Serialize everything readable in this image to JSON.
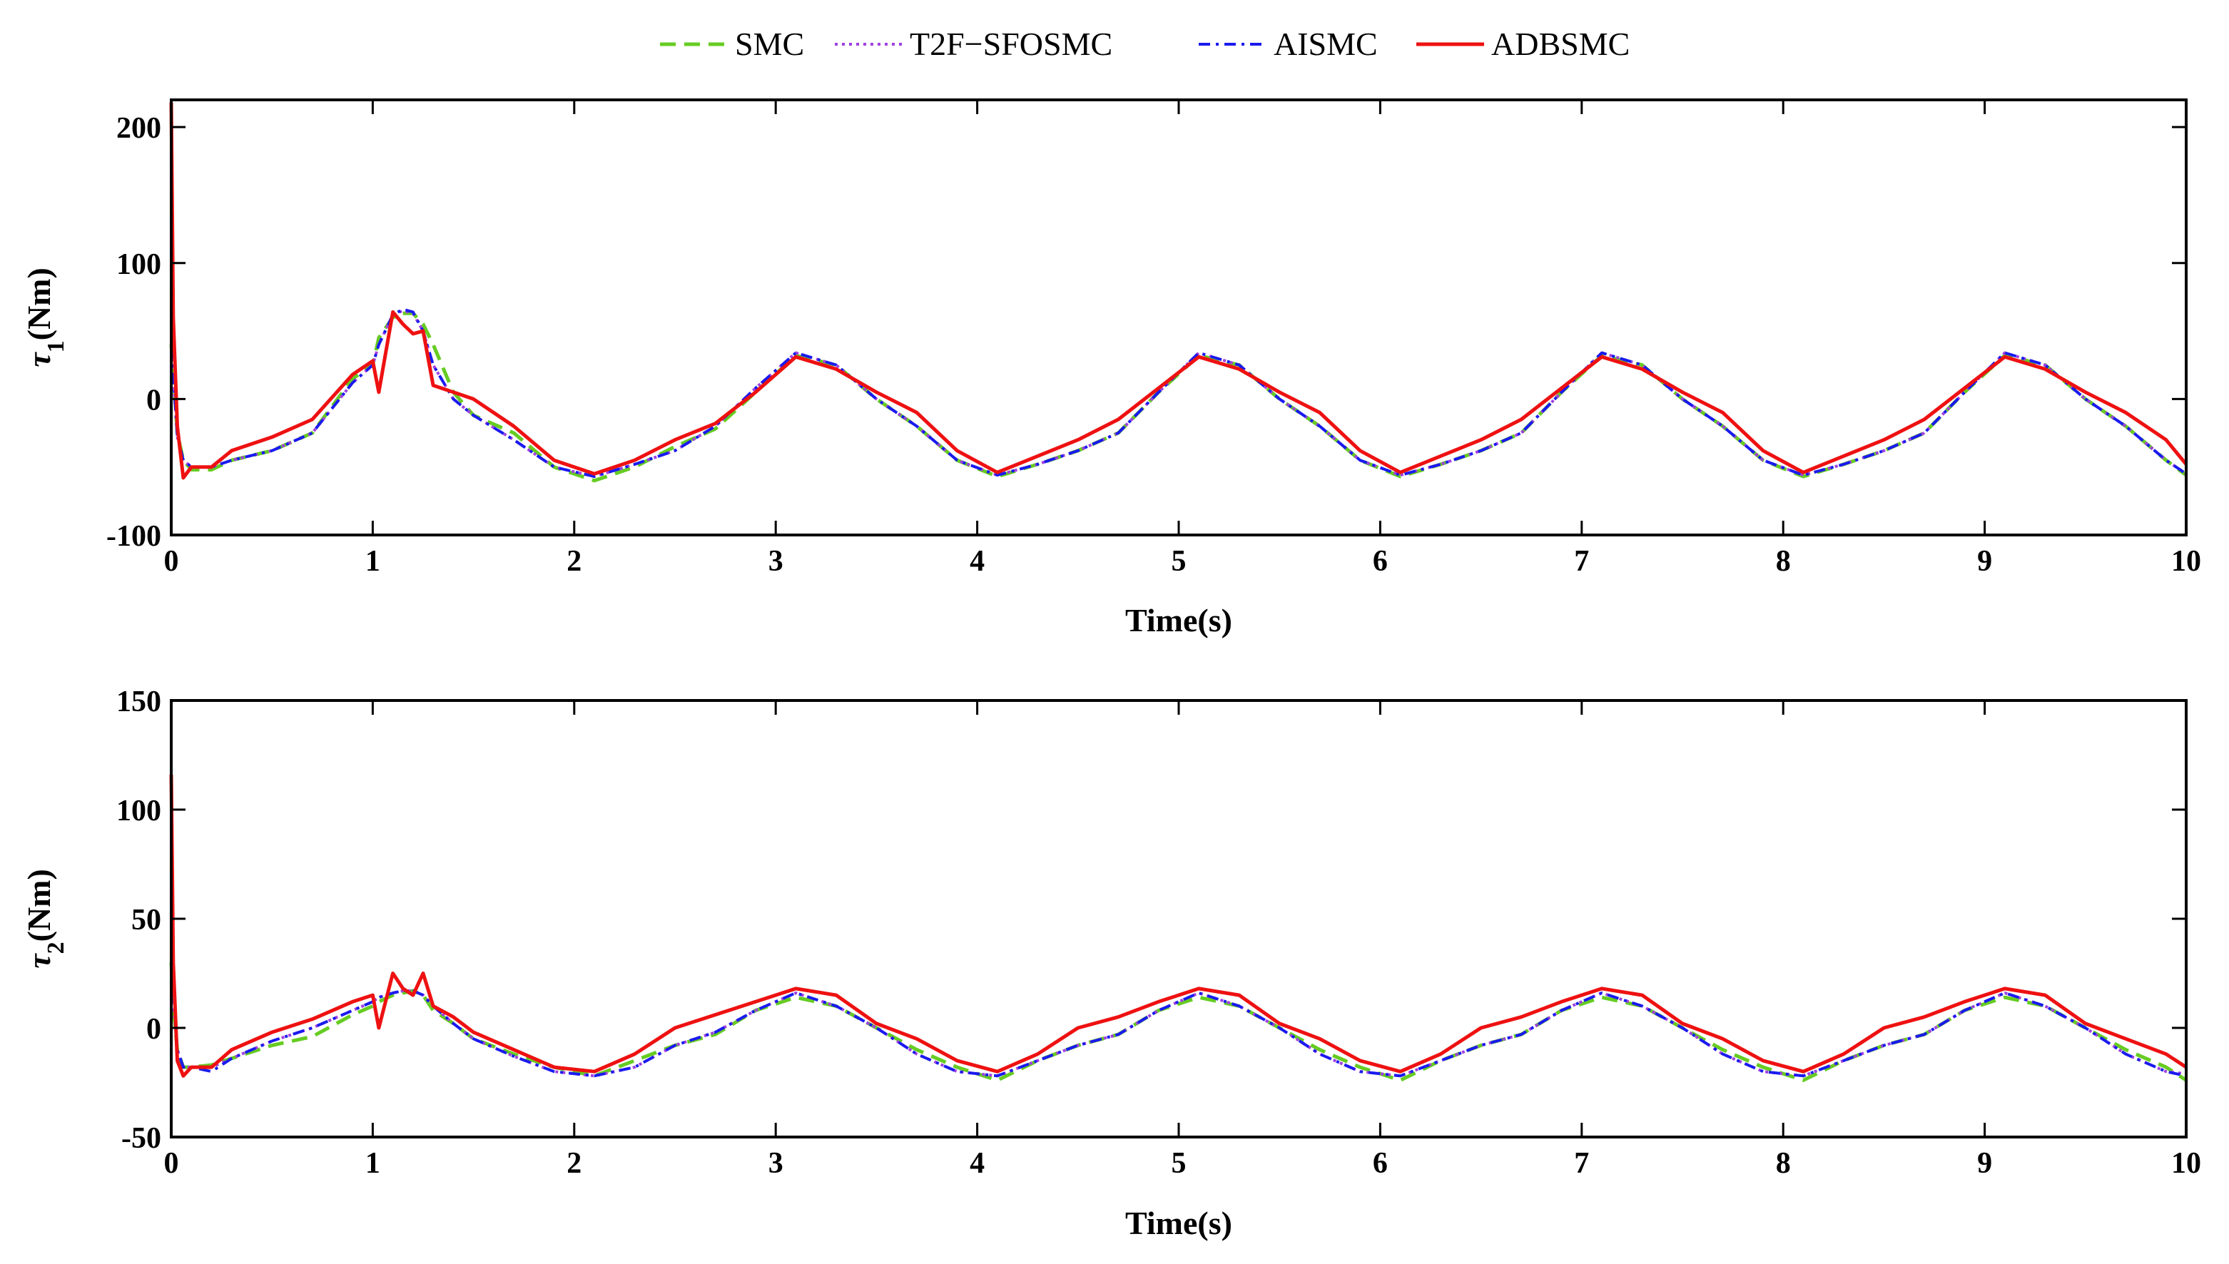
{
  "legend": {
    "placement": "top-center",
    "items": [
      {
        "label": "SMC",
        "color": "#66cc22",
        "dash": "dashed"
      },
      {
        "label": "T2F−SFOSMC",
        "color": "#a040e0",
        "dash": "dotted"
      },
      {
        "label": "AISMC",
        "color": "#1a1aee",
        "dash": "dashdot"
      },
      {
        "label": "ADBSMC",
        "color": "#ee1111",
        "dash": "solid"
      }
    ]
  },
  "chart_data": [
    {
      "type": "line",
      "xlabel": "Time(s)",
      "ylabel_symbol": "τ",
      "ylabel_subscript": "1",
      "ylabel_unit": "(Nm)",
      "xlim": [
        0,
        10
      ],
      "ylim": [
        -100,
        220
      ],
      "xticks": [
        "0",
        "1",
        "2",
        "3",
        "4",
        "5",
        "6",
        "7",
        "8",
        "9",
        "10"
      ],
      "yticks": [
        "-100",
        "0",
        "100",
        "200"
      ],
      "grid": false,
      "x": [
        0,
        0.01,
        0.03,
        0.06,
        0.1,
        0.2,
        0.3,
        0.5,
        0.7,
        0.9,
        1.0,
        1.03,
        1.1,
        1.15,
        1.2,
        1.25,
        1.3,
        1.4,
        1.5,
        1.7,
        1.9,
        2.1,
        2.3,
        2.5,
        2.7,
        2.9,
        3.1,
        3.3,
        3.5,
        3.7,
        3.9,
        4.1,
        4.3,
        4.5,
        4.7,
        4.9,
        5.1,
        5.3,
        5.5,
        5.7,
        5.9,
        6.1,
        6.3,
        6.5,
        6.7,
        6.9,
        7.1,
        7.3,
        7.5,
        7.7,
        7.9,
        8.1,
        8.3,
        8.5,
        8.7,
        8.9,
        9.1,
        9.3,
        9.5,
        9.7,
        9.9,
        10.0
      ],
      "series": [
        {
          "name": "SMC",
          "values": [
            40,
            20,
            -25,
            -45,
            -52,
            -52,
            -45,
            -38,
            -25,
            15,
            25,
            45,
            60,
            63,
            63,
            55,
            40,
            5,
            -12,
            -25,
            -50,
            -60,
            -50,
            -35,
            -22,
            5,
            32,
            25,
            0,
            -20,
            -45,
            -57,
            -48,
            -38,
            -25,
            5,
            32,
            25,
            0,
            -20,
            -45,
            -57,
            -48,
            -38,
            -25,
            5,
            32,
            25,
            0,
            -20,
            -45,
            -57,
            -48,
            -38,
            -25,
            5,
            32,
            25,
            0,
            -20,
            -45,
            -56
          ]
        },
        {
          "name": "T2F−SFOSMC",
          "values": [
            35,
            15,
            -28,
            -45,
            -50,
            -50,
            -45,
            -38,
            -25,
            12,
            25,
            40,
            62,
            65,
            63,
            50,
            25,
            0,
            -12,
            -30,
            -50,
            -57,
            -48,
            -38,
            -20,
            8,
            34,
            25,
            0,
            -20,
            -45,
            -56,
            -48,
            -38,
            -25,
            5,
            34,
            25,
            0,
            -20,
            -45,
            -56,
            -48,
            -38,
            -25,
            5,
            34,
            25,
            0,
            -20,
            -45,
            -56,
            -48,
            -38,
            -25,
            5,
            34,
            25,
            0,
            -20,
            -45,
            -55
          ]
        },
        {
          "name": "AISMC",
          "values": [
            38,
            18,
            -27,
            -45,
            -50,
            -50,
            -45,
            -38,
            -25,
            12,
            25,
            40,
            62,
            66,
            64,
            50,
            25,
            0,
            -12,
            -30,
            -50,
            -57,
            -48,
            -38,
            -20,
            8,
            34,
            25,
            0,
            -20,
            -45,
            -56,
            -48,
            -38,
            -25,
            5,
            34,
            25,
            0,
            -20,
            -45,
            -56,
            -48,
            -38,
            -25,
            5,
            34,
            25,
            0,
            -20,
            -45,
            -56,
            -48,
            -38,
            -25,
            5,
            34,
            25,
            0,
            -20,
            -45,
            -55
          ]
        },
        {
          "name": "ADBSMC",
          "values": [
            218,
            60,
            -20,
            -58,
            -50,
            -50,
            -38,
            -28,
            -15,
            18,
            28,
            5,
            64,
            55,
            48,
            50,
            10,
            5,
            0,
            -20,
            -45,
            -55,
            -45,
            -30,
            -18,
            5,
            31,
            22,
            5,
            -10,
            -38,
            -54,
            -42,
            -30,
            -15,
            8,
            31,
            22,
            5,
            -10,
            -38,
            -54,
            -42,
            -30,
            -15,
            8,
            31,
            22,
            5,
            -10,
            -38,
            -54,
            -42,
            -30,
            -15,
            8,
            31,
            22,
            5,
            -10,
            -30,
            -48
          ]
        }
      ]
    },
    {
      "type": "line",
      "xlabel": "Time(s)",
      "ylabel_symbol": "τ",
      "ylabel_subscript": "2",
      "ylabel_unit": "(Nm)",
      "xlim": [
        0,
        10
      ],
      "ylim": [
        -50,
        150
      ],
      "xticks": [
        "0",
        "1",
        "2",
        "3",
        "4",
        "5",
        "6",
        "7",
        "8",
        "9",
        "10"
      ],
      "yticks": [
        "-50",
        "0",
        "50",
        "100",
        "150"
      ],
      "grid": false,
      "x": [
        0,
        0.01,
        0.03,
        0.06,
        0.1,
        0.2,
        0.3,
        0.5,
        0.7,
        0.9,
        1.0,
        1.03,
        1.1,
        1.15,
        1.2,
        1.25,
        1.3,
        1.4,
        1.5,
        1.7,
        1.9,
        2.1,
        2.3,
        2.5,
        2.7,
        2.9,
        3.1,
        3.3,
        3.5,
        3.7,
        3.9,
        4.1,
        4.3,
        4.5,
        4.7,
        4.9,
        5.1,
        5.3,
        5.5,
        5.7,
        5.9,
        6.1,
        6.3,
        6.5,
        6.7,
        6.9,
        7.1,
        7.3,
        7.5,
        7.7,
        7.9,
        8.1,
        8.3,
        8.5,
        8.7,
        8.9,
        9.1,
        9.3,
        9.5,
        9.7,
        9.9,
        10.0
      ],
      "series": [
        {
          "name": "SMC",
          "values": [
            30,
            10,
            -10,
            -18,
            -18,
            -17,
            -14,
            -8,
            -4,
            6,
            10,
            12,
            15,
            16,
            17,
            15,
            8,
            2,
            -5,
            -12,
            -18,
            -22,
            -15,
            -8,
            -3,
            8,
            14,
            10,
            0,
            -10,
            -18,
            -24,
            -15,
            -8,
            -3,
            8,
            14,
            10,
            0,
            -10,
            -18,
            -24,
            -15,
            -8,
            -3,
            8,
            14,
            10,
            0,
            -10,
            -18,
            -24,
            -15,
            -8,
            -3,
            8,
            14,
            10,
            0,
            -10,
            -18,
            -24
          ]
        },
        {
          "name": "T2F−SFOSMC",
          "values": [
            35,
            12,
            -10,
            -18,
            -18,
            -18,
            -14,
            -6,
            0,
            8,
            12,
            14,
            16,
            17,
            17,
            15,
            10,
            2,
            -5,
            -13,
            -20,
            -22,
            -18,
            -8,
            -2,
            8,
            16,
            10,
            0,
            -12,
            -20,
            -22,
            -15,
            -8,
            -3,
            8,
            16,
            10,
            0,
            -12,
            -20,
            -22,
            -15,
            -8,
            -3,
            8,
            16,
            10,
            0,
            -12,
            -20,
            -22,
            -15,
            -8,
            -3,
            8,
            16,
            10,
            0,
            -12,
            -20,
            -21
          ]
        },
        {
          "name": "AISMC",
          "values": [
            80,
            20,
            -10,
            -18,
            -18,
            -20,
            -14,
            -6,
            0,
            8,
            12,
            14,
            16,
            17,
            17,
            15,
            10,
            2,
            -5,
            -13,
            -20,
            -22,
            -18,
            -8,
            -2,
            8,
            16,
            10,
            0,
            -12,
            -20,
            -22,
            -15,
            -8,
            -3,
            8,
            16,
            10,
            0,
            -12,
            -20,
            -22,
            -15,
            -8,
            -3,
            8,
            16,
            10,
            0,
            -12,
            -20,
            -22,
            -15,
            -8,
            -3,
            8,
            16,
            10,
            0,
            -12,
            -20,
            -22
          ]
        },
        {
          "name": "ADBSMC",
          "values": [
            116,
            30,
            -15,
            -22,
            -18,
            -18,
            -10,
            -2,
            4,
            12,
            15,
            0,
            25,
            18,
            15,
            25,
            10,
            5,
            -2,
            -10,
            -18,
            -20,
            -12,
            0,
            6,
            12,
            18,
            15,
            2,
            -5,
            -15,
            -20,
            -12,
            0,
            5,
            12,
            18,
            15,
            2,
            -5,
            -15,
            -20,
            -12,
            0,
            5,
            12,
            18,
            15,
            2,
            -5,
            -15,
            -20,
            -12,
            0,
            5,
            12,
            18,
            15,
            2,
            -5,
            -12,
            -18
          ]
        }
      ]
    }
  ]
}
